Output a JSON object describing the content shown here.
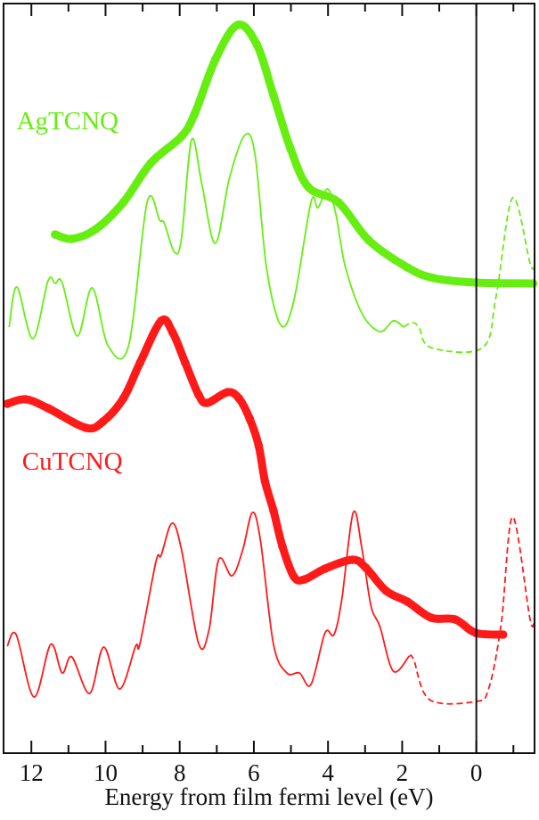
{
  "chart_data": {
    "type": "line",
    "title": "",
    "xlabel": "Energy from film fermi level (eV)",
    "ylabel": "",
    "xlim": [
      12.75,
      -1.57
    ],
    "ylim": [
      0,
      841
    ],
    "x_reversed": true,
    "grid": false,
    "xticks": [
      12,
      10,
      8,
      6,
      4,
      2,
      0
    ],
    "xtick_labels": [
      "12",
      "10",
      "8",
      "6",
      "4",
      "2",
      "0"
    ],
    "minor_xticks": [
      11,
      9,
      7,
      5,
      3,
      1,
      -1
    ],
    "reference_line_x": 0,
    "annotations": [
      {
        "text": "AgTCNQ",
        "color": "#66ee11",
        "at": [
          12.4,
          700
        ]
      },
      {
        "text": "CuTCNQ",
        "color": "#ff1a1a",
        "at": [
          12.25,
          318
        ]
      }
    ],
    "series": [
      {
        "group": 0,
        "style": "thick",
        "color": "#66ee11",
        "points": [
          [
            11.36,
            582
          ],
          [
            10.91,
            577
          ],
          [
            10.26,
            588
          ],
          [
            9.52,
            618
          ],
          [
            8.78,
            662
          ],
          [
            7.95,
            692
          ],
          [
            7.59,
            718
          ],
          [
            7.04,
            778
          ],
          [
            6.44,
            817
          ],
          [
            5.92,
            795
          ],
          [
            5.47,
            738
          ],
          [
            5.01,
            678
          ],
          [
            4.53,
            635
          ],
          [
            3.72,
            618
          ],
          [
            2.89,
            575
          ],
          [
            1.86,
            545
          ],
          [
            1.15,
            533
          ],
          [
            0.02,
            528
          ],
          [
            -1.53,
            527
          ]
        ]
      },
      {
        "group": 0,
        "style": "thin",
        "color": "#66ee11",
        "points": [
          [
            12.6,
            478
          ],
          [
            12.39,
            523
          ],
          [
            11.96,
            465
          ],
          [
            11.55,
            530
          ],
          [
            11.36,
            527
          ],
          [
            11.17,
            528
          ],
          [
            10.76,
            468
          ],
          [
            10.36,
            522
          ],
          [
            9.93,
            457
          ],
          [
            9.38,
            457
          ],
          [
            8.88,
            618
          ],
          [
            8.54,
            598
          ],
          [
            8.42,
            595
          ],
          [
            8.14,
            562
          ],
          [
            7.95,
            578
          ],
          [
            7.68,
            688
          ],
          [
            7.4,
            638
          ],
          [
            7.04,
            572
          ],
          [
            6.66,
            645
          ],
          [
            6.25,
            693
          ],
          [
            5.97,
            672
          ],
          [
            5.66,
            545
          ],
          [
            5.27,
            480
          ],
          [
            4.92,
            508
          ],
          [
            4.46,
            618
          ],
          [
            4.27,
            612
          ],
          [
            4.01,
            633
          ],
          [
            3.79,
            605
          ],
          [
            3.53,
            545
          ],
          [
            3.08,
            493
          ],
          [
            2.6,
            473
          ],
          [
            2.24,
            485
          ],
          [
            1.96,
            478
          ]
        ]
      },
      {
        "group": 0,
        "style": "dashed",
        "color": "#66ee11",
        "points": [
          [
            1.96,
            478
          ],
          [
            1.74,
            483
          ],
          [
            1.55,
            478
          ],
          [
            1.22,
            455
          ],
          [
            -0.17,
            455
          ],
          [
            -0.53,
            512
          ],
          [
            -0.98,
            623
          ],
          [
            -1.46,
            548
          ],
          [
            -1.58,
            550
          ]
        ]
      },
      {
        "group": 1,
        "style": "thick",
        "color": "#ff1a1a",
        "points": [
          [
            12.65,
            392
          ],
          [
            12.15,
            397
          ],
          [
            11.55,
            387
          ],
          [
            10.53,
            365
          ],
          [
            10.07,
            372
          ],
          [
            9.52,
            398
          ],
          [
            9.07,
            438
          ],
          [
            8.5,
            485
          ],
          [
            8.19,
            472
          ],
          [
            7.85,
            438
          ],
          [
            7.49,
            402
          ],
          [
            7.26,
            393
          ],
          [
            6.71,
            405
          ],
          [
            6.4,
            398
          ],
          [
            6.11,
            375
          ],
          [
            5.87,
            345
          ],
          [
            5.7,
            305
          ],
          [
            5.47,
            272
          ],
          [
            5.23,
            232
          ],
          [
            4.92,
            198
          ],
          [
            4.63,
            195
          ],
          [
            4.08,
            207
          ],
          [
            3.34,
            217
          ],
          [
            2.98,
            208
          ],
          [
            2.43,
            182
          ],
          [
            1.86,
            170
          ],
          [
            1.22,
            152
          ],
          [
            0.57,
            150
          ],
          [
            0.02,
            135
          ],
          [
            -0.72,
            133
          ]
        ]
      },
      {
        "group": 1,
        "style": "thin",
        "color": "#ff1a1a",
        "points": [
          [
            12.65,
            120
          ],
          [
            12.41,
            133
          ],
          [
            11.93,
            63
          ],
          [
            11.48,
            122
          ],
          [
            11.17,
            90
          ],
          [
            10.91,
            108
          ],
          [
            10.43,
            67
          ],
          [
            10.05,
            119
          ],
          [
            9.62,
            72
          ],
          [
            9.19,
            120
          ],
          [
            9.07,
            123
          ],
          [
            8.64,
            215
          ],
          [
            8.5,
            222
          ],
          [
            8.21,
            258
          ],
          [
            7.95,
            228
          ],
          [
            7.49,
            123
          ],
          [
            7.21,
            138
          ],
          [
            6.95,
            217
          ],
          [
            6.59,
            199
          ],
          [
            6.3,
            228
          ],
          [
            6.04,
            270
          ],
          [
            5.82,
            238
          ],
          [
            5.47,
            122
          ],
          [
            5.11,
            90
          ],
          [
            4.77,
            90
          ],
          [
            4.46,
            77
          ],
          [
            4.08,
            135
          ],
          [
            3.84,
            133
          ],
          [
            3.63,
            172
          ],
          [
            3.32,
            270
          ],
          [
            3.08,
            228
          ],
          [
            2.84,
            165
          ],
          [
            2.6,
            142
          ],
          [
            2.24,
            92
          ],
          [
            1.81,
            109
          ]
        ]
      },
      {
        "group": 1,
        "style": "dashed",
        "color": "#ff1a1a",
        "points": [
          [
            1.81,
            109
          ],
          [
            1.69,
            105
          ],
          [
            1.26,
            60
          ],
          [
            0.02,
            58
          ],
          [
            -0.33,
            72
          ],
          [
            -0.67,
            145
          ],
          [
            -0.98,
            265
          ],
          [
            -1.46,
            148
          ],
          [
            -1.58,
            158
          ]
        ]
      }
    ]
  }
}
